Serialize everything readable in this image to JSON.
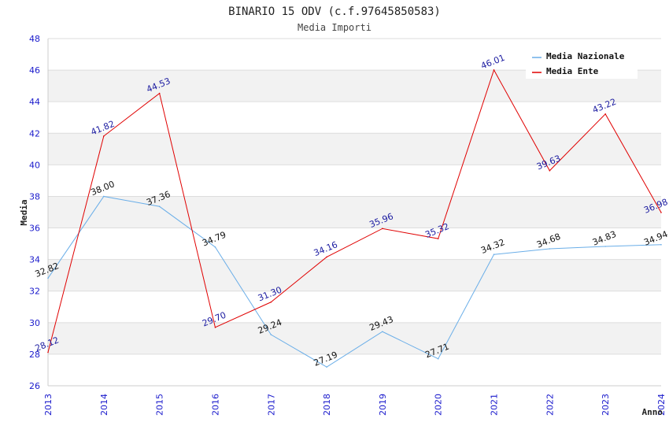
{
  "chart_data": {
    "type": "line",
    "title": "BINARIO 15 ODV (c.f.97645850583)",
    "subtitle": "Media Importi",
    "xlabel": "Anno",
    "ylabel": "Media",
    "x": [
      "2013",
      "2014",
      "2015",
      "2016",
      "2017",
      "2018",
      "2019",
      "2020",
      "2021",
      "2022",
      "2023",
      "2024"
    ],
    "ylim": [
      26,
      48
    ],
    "yticks": [
      "26",
      "28",
      "30",
      "32",
      "34",
      "36",
      "38",
      "40",
      "42",
      "44",
      "46",
      "48"
    ],
    "grid": "horizontal alternating bands",
    "legend_position": "top-right",
    "series": [
      {
        "name": "Media Nazionale",
        "color": "#6aaee8",
        "label_color": "#111111",
        "values": [
          32.82,
          38.0,
          37.36,
          34.79,
          29.24,
          27.19,
          29.43,
          27.71,
          34.32,
          34.68,
          34.83,
          34.94
        ],
        "labels": [
          "32.82",
          "38.00",
          "37.36",
          "34.79",
          "29.24",
          "27.19",
          "29.43",
          "27.71",
          "34.32",
          "34.68",
          "34.83",
          "34.94"
        ]
      },
      {
        "name": "Media Ente",
        "color": "#e00000",
        "label_color": "#1a1aa0",
        "values": [
          28.12,
          41.82,
          44.53,
          29.7,
          31.3,
          34.16,
          35.96,
          35.32,
          46.01,
          39.63,
          43.22,
          36.98
        ],
        "labels": [
          "28.12",
          "41.82",
          "44.53",
          "29.70",
          "31.30",
          "34.16",
          "35.96",
          "35.32",
          "46.01",
          "39.63",
          "43.22",
          "36.98"
        ]
      }
    ]
  }
}
